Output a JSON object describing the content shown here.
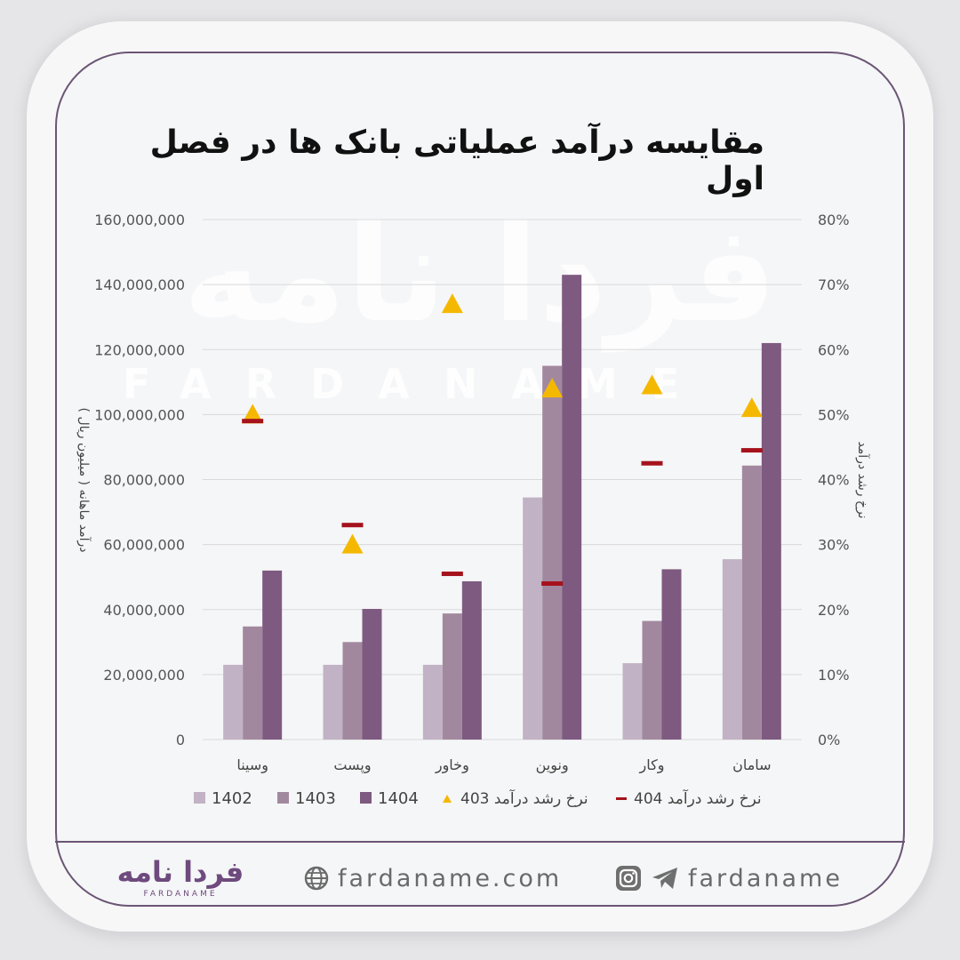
{
  "title": "مقایسه درآمد عملیاتی بانک ها در فصل اول",
  "watermark": {
    "brand_fa": "فردا نامه",
    "brand_en": "FARDANAME"
  },
  "chart_data": {
    "type": "bar",
    "categories": [
      "وسینا",
      "وپست",
      "وخاور",
      "ونوین",
      "وکار",
      "سامان"
    ],
    "series": [
      {
        "name": "1402",
        "color": "#c2b2c5",
        "values": [
          23000000,
          23000000,
          23000000,
          74500000,
          23500000,
          55500000
        ]
      },
      {
        "name": "1403",
        "color": "#a2889f",
        "values": [
          34800000,
          30000000,
          38800000,
          115000000,
          36500000,
          84300000
        ]
      },
      {
        "name": "1404",
        "color": "#7e5a80",
        "values": [
          52000000,
          40200000,
          48700000,
          143000000,
          52400000,
          122000000
        ]
      }
    ],
    "growth_series": [
      {
        "name": "نرخ رشد درآمد 403",
        "marker": "triangle",
        "color": "#f5b800",
        "values": [
          50,
          30,
          67,
          54,
          54.5,
          51
        ]
      },
      {
        "name": "نرخ رشد درآمد 404",
        "marker": "dash",
        "color": "#a5121c",
        "values": [
          49,
          33,
          25.5,
          24,
          42.5,
          44.5
        ]
      }
    ],
    "y_left": {
      "label": "درآمد ماهانه ( میلیون ریال )",
      "min": 0,
      "max": 160000000,
      "step": 20000000,
      "ticks": [
        "0",
        "20,000,000",
        "40,000,000",
        "60,000,000",
        "80,000,000",
        "100,000,000",
        "120,000,000",
        "140,000,000",
        "160,000,000"
      ]
    },
    "y_right": {
      "label": "نرخ رشد درآمد",
      "min": 0,
      "max": 80,
      "step": 10,
      "ticks": [
        "0%",
        "10%",
        "20%",
        "30%",
        "40%",
        "50%",
        "60%",
        "70%",
        "80%"
      ]
    },
    "gridlines": true,
    "legend_position": "bottom"
  },
  "footer": {
    "logo_fa": "فردا نامه",
    "logo_en": "FARDANAME",
    "website": "fardaname.com",
    "social_handle": "fardaname",
    "icons": [
      "globe-icon",
      "instagram-icon",
      "telegram-icon"
    ]
  }
}
